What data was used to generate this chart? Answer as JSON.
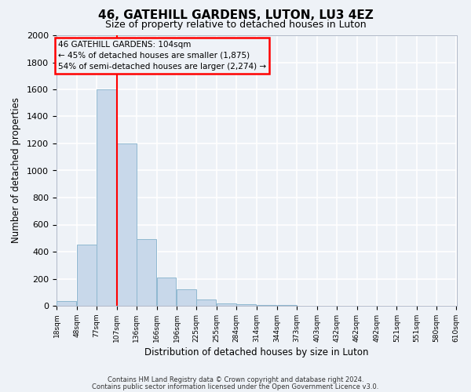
{
  "title": "46, GATEHILL GARDENS, LUTON, LU3 4EZ",
  "subtitle": "Size of property relative to detached houses in Luton",
  "xlabel": "Distribution of detached houses by size in Luton",
  "ylabel": "Number of detached properties",
  "bar_color": "#c8d8ea",
  "bar_edge_color": "#8fb8d0",
  "bar_left_edges": [
    18,
    48,
    77,
    107,
    136,
    166,
    196,
    225,
    255,
    284,
    314,
    344,
    373,
    403,
    432,
    462,
    492,
    521,
    551,
    580
  ],
  "bar_heights": [
    35,
    455,
    1600,
    1200,
    490,
    210,
    120,
    45,
    20,
    10,
    5,
    3,
    2,
    1,
    1,
    0,
    0,
    0,
    0,
    0
  ],
  "bin_width": 29,
  "x_tick_labels": [
    "18sqm",
    "48sqm",
    "77sqm",
    "107sqm",
    "136sqm",
    "166sqm",
    "196sqm",
    "225sqm",
    "255sqm",
    "284sqm",
    "314sqm",
    "344sqm",
    "373sqm",
    "403sqm",
    "432sqm",
    "462sqm",
    "492sqm",
    "521sqm",
    "551sqm",
    "580sqm",
    "610sqm"
  ],
  "ylim": [
    0,
    2000
  ],
  "yticks": [
    0,
    200,
    400,
    600,
    800,
    1000,
    1200,
    1400,
    1600,
    1800,
    2000
  ],
  "vline_x": 107,
  "annotation_title": "46 GATEHILL GARDENS: 104sqm",
  "annotation_line2": "← 45% of detached houses are smaller (1,875)",
  "annotation_line3": "54% of semi-detached houses are larger (2,274) →",
  "footer_line1": "Contains HM Land Registry data © Crown copyright and database right 2024.",
  "footer_line2": "Contains public sector information licensed under the Open Government Licence v3.0.",
  "background_color": "#eef2f7",
  "grid_color": "#ffffff"
}
